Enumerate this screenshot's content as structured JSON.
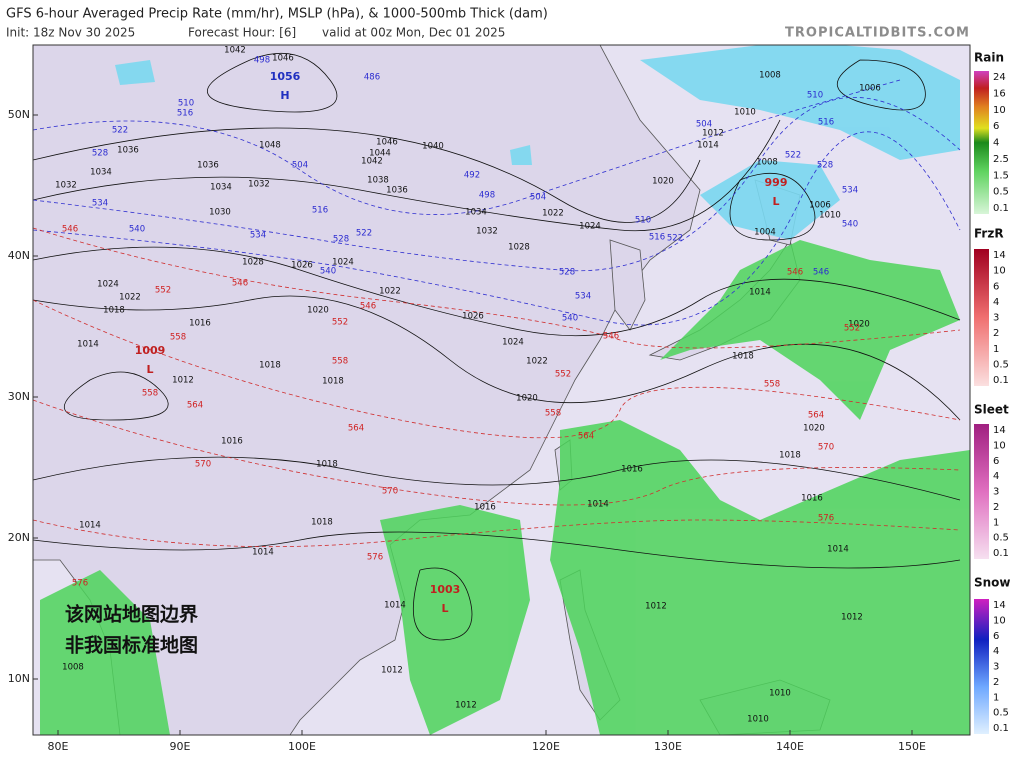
{
  "header": {
    "title": "GFS 6-hour Averaged Precip Rate (mm/hr), MSLP (hPa), & 1000-500mb Thick (dam)",
    "init": "Init: 18z Nov 30 2025",
    "forecast_hour": "Forecast Hour: [6]",
    "valid": "valid at 00z Mon, Dec 01 2025",
    "site": "TROPICALTIDBITS.COM"
  },
  "axes": {
    "latitude": [
      "50N",
      "40N",
      "30N",
      "20N",
      "10N"
    ],
    "longitude": [
      "80E",
      "90E",
      "100E",
      "120E",
      "130E",
      "140E",
      "150E"
    ]
  },
  "legends": [
    {
      "title": "Rain",
      "labels": [
        "24",
        "16",
        "10",
        "6",
        "4",
        "2.5",
        "1.5",
        "0.5",
        "0.1"
      ]
    },
    {
      "title": "FrzR",
      "labels": [
        "14",
        "10",
        "6",
        "4",
        "3",
        "2",
        "1",
        "0.5",
        "0.1"
      ]
    },
    {
      "title": "Sleet",
      "labels": [
        "14",
        "10",
        "6",
        "4",
        "3",
        "2",
        "1",
        "0.5",
        "0.1"
      ]
    },
    {
      "title": "Snow",
      "labels": [
        "14",
        "10",
        "6",
        "4",
        "3",
        "2",
        "1",
        "0.5",
        "0.1"
      ]
    }
  ],
  "pressure_centers": [
    {
      "value": "1056",
      "symbol": "H"
    },
    {
      "value": "1009",
      "symbol": "L"
    },
    {
      "value": "999",
      "symbol": "L"
    },
    {
      "value": "1003",
      "symbol": "L"
    }
  ],
  "isobar_labels": [
    "1042",
    "1046",
    "1008",
    "1006",
    "1010",
    "1012",
    "1014",
    "1008",
    "1036",
    "1036",
    "1034",
    "1032",
    "1034",
    "1032",
    "1030",
    "1048",
    "1046",
    "1044",
    "1042",
    "1038",
    "1036",
    "1040",
    "1034",
    "1032",
    "1028",
    "1022",
    "1024",
    "1020",
    "1006",
    "1010",
    "1004",
    "1028",
    "1026",
    "1024",
    "1024",
    "1022",
    "1018",
    "1016",
    "1022",
    "1020",
    "1026",
    "1024",
    "1022",
    "1014",
    "1012",
    "1018",
    "1018",
    "1020",
    "1014",
    "1018",
    "1020",
    "1020",
    "1018",
    "1016",
    "1018",
    "1016",
    "1014",
    "1016",
    "1016",
    "1014",
    "1018",
    "1014",
    "1014",
    "1012",
    "1012",
    "1014",
    "1012",
    "1008",
    "1010",
    "1010",
    "1012"
  ],
  "thickness_labels": [
    "498",
    "510",
    "516",
    "522",
    "528",
    "534",
    "540",
    "504",
    "516",
    "522",
    "528",
    "534",
    "540",
    "486",
    "492",
    "498",
    "504",
    "510",
    "516",
    "522",
    "528",
    "534",
    "540",
    "504",
    "510",
    "516",
    "522",
    "528",
    "534",
    "540",
    "546"
  ],
  "warm_thickness_labels": [
    "546",
    "552",
    "558",
    "546",
    "552",
    "546",
    "558",
    "558",
    "564",
    "570",
    "564",
    "570",
    "576",
    "576",
    "552",
    "558",
    "564",
    "546",
    "552",
    "558",
    "564",
    "570",
    "576",
    "546"
  ],
  "watermark": [
    "该网站地图边界",
    "非我国标准地图"
  ]
}
